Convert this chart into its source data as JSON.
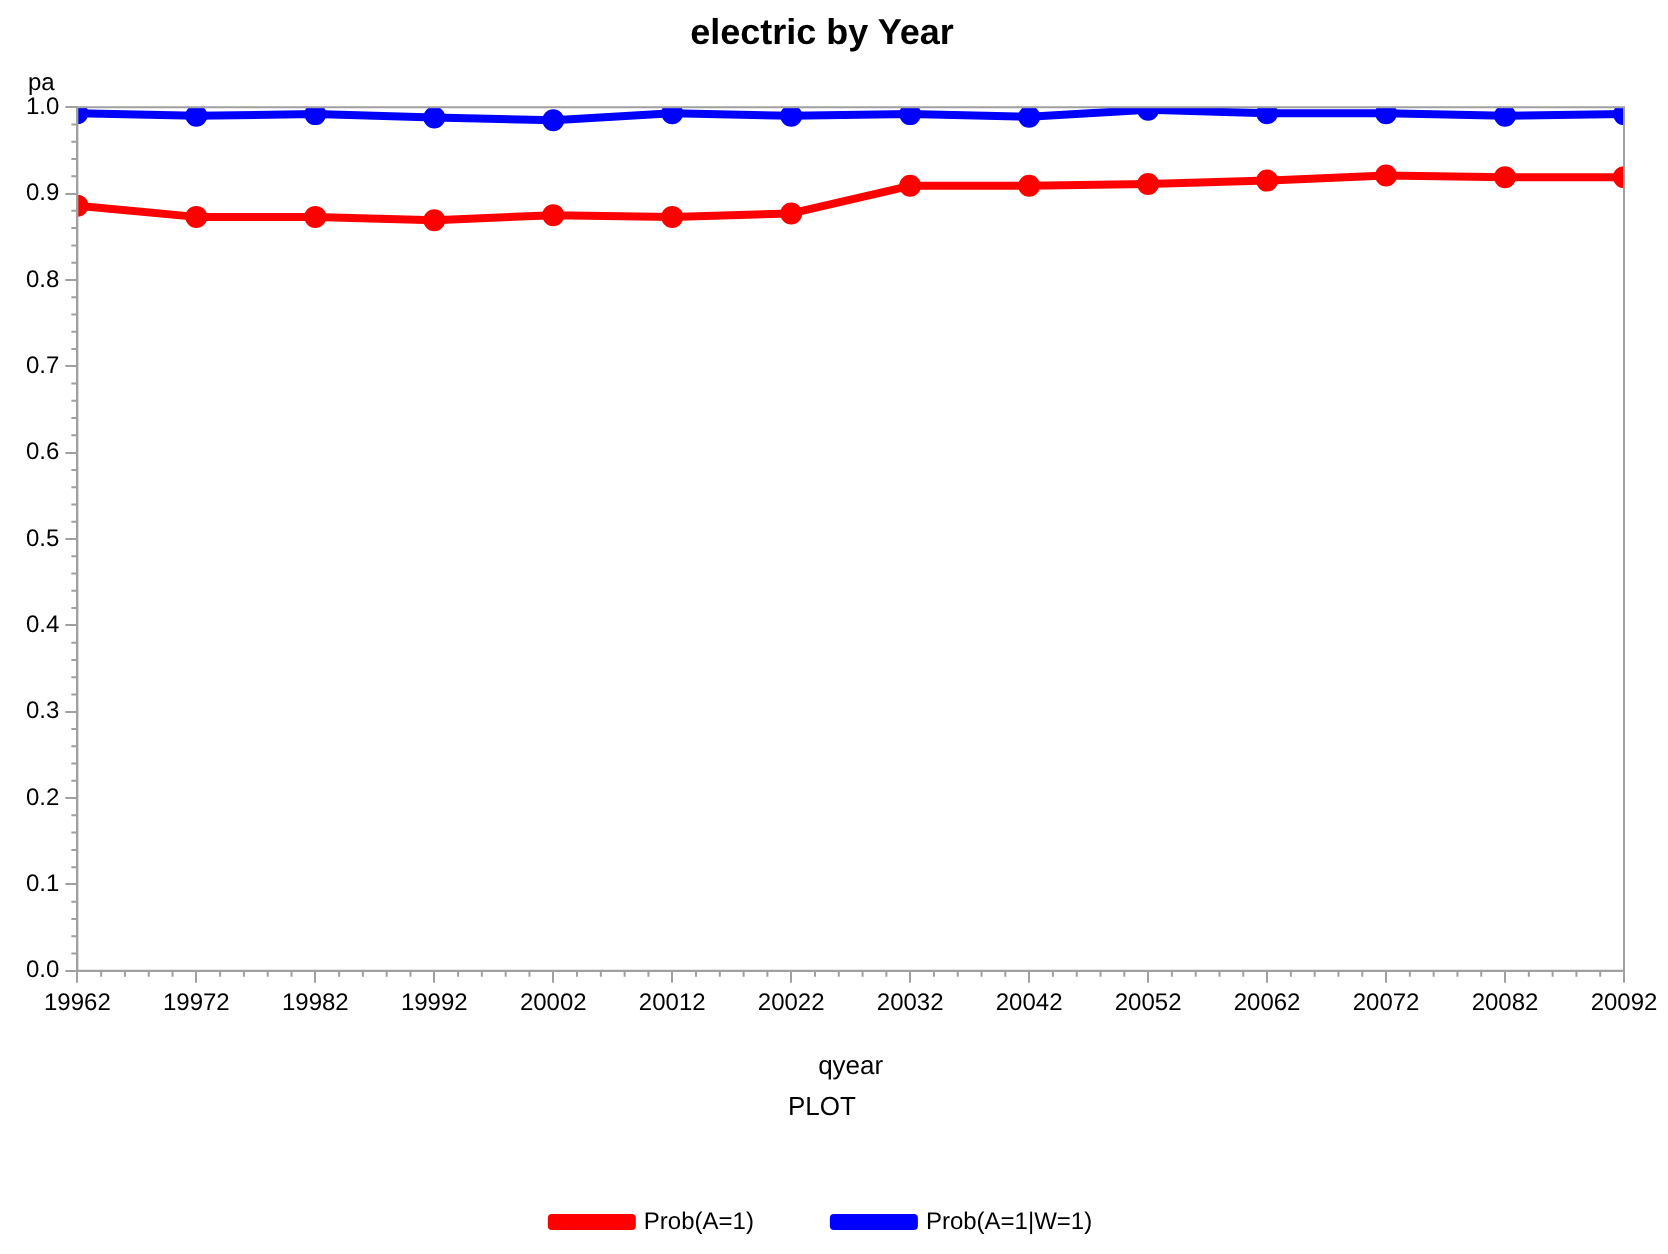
{
  "chart_data": {
    "type": "line",
    "title": "electric by Year",
    "xlabel": "qyear",
    "ylabel": "pa",
    "legend_title": "PLOT",
    "x": [
      19962,
      19972,
      19982,
      19992,
      20002,
      20012,
      20022,
      20032,
      20042,
      20052,
      20062,
      20072,
      20082,
      20092
    ],
    "series": [
      {
        "name": "Prob(A=1)",
        "color": "#ff0000",
        "values": [
          0.886,
          0.873,
          0.873,
          0.869,
          0.875,
          0.873,
          0.877,
          0.909,
          0.909,
          0.911,
          0.915,
          0.921,
          0.919,
          0.919
        ]
      },
      {
        "name": "Prob(A=1|W=1)",
        "color": "#0000ff",
        "values": [
          0.993,
          0.99,
          0.992,
          0.988,
          0.985,
          0.993,
          0.99,
          0.992,
          0.989,
          0.997,
          0.993,
          0.993,
          0.99,
          0.992
        ]
      }
    ],
    "xlim": [
      19962,
      20092
    ],
    "xticks": [
      19962,
      19972,
      19982,
      19992,
      20002,
      20012,
      20022,
      20032,
      20042,
      20052,
      20062,
      20072,
      20082,
      20092
    ],
    "ylim": [
      0,
      1
    ],
    "yticks": [
      {
        "value": 0,
        "label": "0.0"
      },
      {
        "value": 0.1,
        "label": "0.1"
      },
      {
        "value": 0.2,
        "label": "0.2"
      },
      {
        "value": 0.3,
        "label": "0.3"
      },
      {
        "value": 0.4,
        "label": "0.4"
      },
      {
        "value": 0.5,
        "label": "0.5"
      },
      {
        "value": 0.6,
        "label": "0.6"
      },
      {
        "value": 0.7,
        "label": "0.7"
      },
      {
        "value": 0.8,
        "label": "0.8"
      },
      {
        "value": 0.9,
        "label": "0.9"
      },
      {
        "value": 1,
        "label": "1.0"
      }
    ],
    "grid": false,
    "legend": "bottom",
    "marker": "circle",
    "line_style": "solid"
  }
}
